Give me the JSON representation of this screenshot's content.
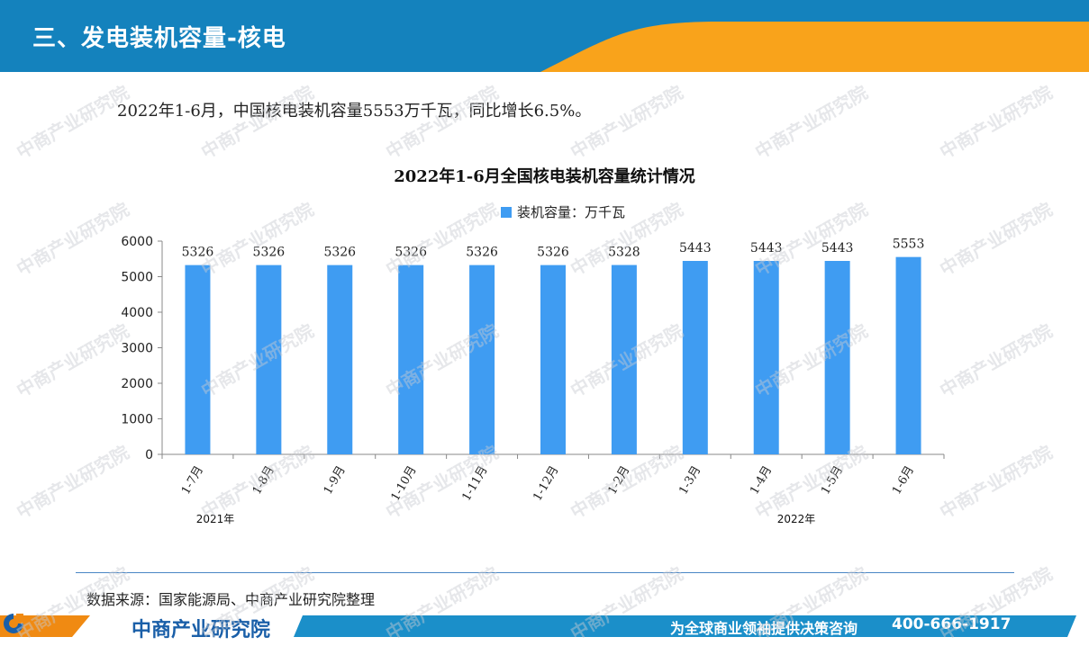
{
  "header": {
    "title": "三、发电装机容量-核电"
  },
  "summary": "2022年1-6月，中国核电装机容量5553万千瓦，同比增长6.5%。",
  "colors": {
    "bar": "#3f9cf2",
    "header_blue": "#1482bd",
    "header_orange": "#f9a31b",
    "footer_blue": "#1b8fc9",
    "footer_orange": "#f08a12"
  },
  "chart_data": {
    "type": "bar",
    "title": "2022年1-6月全国核电装机容量统计情况",
    "categories": [
      "1-7月",
      "1-8月",
      "1-9月",
      "1-10月",
      "1-11月",
      "1-12月",
      "1-2月",
      "1-3月",
      "1-4月",
      "1-5月",
      "1-6月"
    ],
    "series": [
      {
        "name": "装机容量：万千瓦",
        "values": [
          5326,
          5326,
          5326,
          5326,
          5326,
          5326,
          5328,
          5443,
          5443,
          5443,
          5553
        ]
      }
    ],
    "year_groups": [
      {
        "label": "2021年",
        "start": 0,
        "end": 5
      },
      {
        "label": "2022年",
        "start": 6,
        "end": 10
      }
    ],
    "ylim": [
      0,
      6000
    ],
    "yticks": [
      0,
      1000,
      2000,
      3000,
      4000,
      5000,
      6000
    ],
    "legend": "top-center",
    "grid": false
  },
  "source": "数据来源：国家能源局、中商产业研究院整理",
  "footer": {
    "logo": "中商产业研究院",
    "slogan": "为全球商业领袖提供决策咨询",
    "phone": "400-666-1917"
  },
  "watermark": "中商产业研究院"
}
